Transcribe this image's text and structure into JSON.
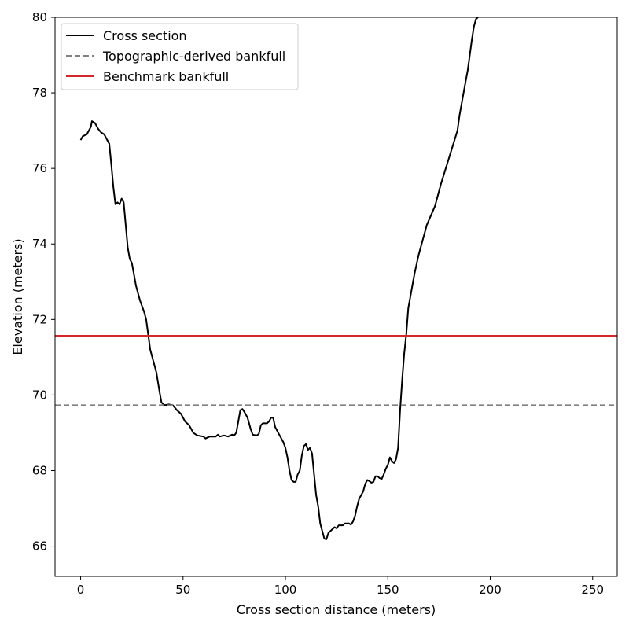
{
  "chart_data": {
    "type": "line",
    "xlabel": "Cross section distance (meters)",
    "ylabel": "Elevation (meters)",
    "xlim": [
      -12.5,
      262
    ],
    "ylim": [
      65.2,
      80
    ],
    "x_ticks": [
      0,
      50,
      100,
      150,
      200,
      250
    ],
    "y_ticks": [
      66,
      68,
      70,
      72,
      74,
      76,
      78,
      80
    ],
    "legend_position": "upper-left",
    "series": [
      {
        "name": "Cross section",
        "style": "solid",
        "color": "#000000",
        "points": [
          [
            0,
            76.75
          ],
          [
            1,
            76.85
          ],
          [
            3,
            76.9
          ],
          [
            5,
            77.1
          ],
          [
            5.5,
            77.25
          ],
          [
            7,
            77.2
          ],
          [
            8.5,
            77.05
          ],
          [
            10,
            76.95
          ],
          [
            11.5,
            76.9
          ],
          [
            13,
            76.75
          ],
          [
            14,
            76.65
          ],
          [
            15,
            76.1
          ],
          [
            16,
            75.5
          ],
          [
            17,
            75.05
          ],
          [
            18,
            75.1
          ],
          [
            19,
            75.05
          ],
          [
            20,
            75.2
          ],
          [
            21,
            75.1
          ],
          [
            22,
            74.5
          ],
          [
            23,
            73.9
          ],
          [
            24,
            73.6
          ],
          [
            25,
            73.5
          ],
          [
            27,
            72.9
          ],
          [
            29,
            72.5
          ],
          [
            31,
            72.2
          ],
          [
            32,
            72.0
          ],
          [
            33,
            71.6
          ],
          [
            34,
            71.2
          ],
          [
            35,
            71.0
          ],
          [
            37,
            70.6
          ],
          [
            38.5,
            70.1
          ],
          [
            39.5,
            69.8
          ],
          [
            41,
            69.73
          ],
          [
            43,
            69.75
          ],
          [
            45,
            69.73
          ],
          [
            47,
            69.6
          ],
          [
            49,
            69.5
          ],
          [
            51,
            69.3
          ],
          [
            53,
            69.2
          ],
          [
            55,
            69.0
          ],
          [
            57,
            68.93
          ],
          [
            60,
            68.9
          ],
          [
            61,
            68.85
          ],
          [
            63,
            68.9
          ],
          [
            66,
            68.9
          ],
          [
            67,
            68.95
          ],
          [
            68,
            68.9
          ],
          [
            70,
            68.93
          ],
          [
            72,
            68.9
          ],
          [
            74,
            68.95
          ],
          [
            75,
            68.93
          ],
          [
            76,
            69.0
          ],
          [
            77,
            69.3
          ],
          [
            78,
            69.6
          ],
          [
            79,
            69.63
          ],
          [
            80,
            69.55
          ],
          [
            81.5,
            69.4
          ],
          [
            83,
            69.1
          ],
          [
            84,
            68.95
          ],
          [
            86,
            68.93
          ],
          [
            87,
            68.97
          ],
          [
            88,
            69.2
          ],
          [
            89,
            69.25
          ],
          [
            91,
            69.25
          ],
          [
            92,
            69.3
          ],
          [
            93,
            69.4
          ],
          [
            94,
            69.4
          ],
          [
            95,
            69.15
          ],
          [
            96,
            69.05
          ],
          [
            97,
            68.95
          ],
          [
            98,
            68.85
          ],
          [
            99,
            68.75
          ],
          [
            100,
            68.6
          ],
          [
            101,
            68.35
          ],
          [
            102,
            68.0
          ],
          [
            103,
            67.75
          ],
          [
            104,
            67.7
          ],
          [
            105,
            67.7
          ],
          [
            106,
            67.9
          ],
          [
            107,
            68.0
          ],
          [
            108,
            68.4
          ],
          [
            109,
            68.65
          ],
          [
            110,
            68.7
          ],
          [
            111,
            68.55
          ],
          [
            112,
            68.6
          ],
          [
            113,
            68.45
          ],
          [
            114,
            67.9
          ],
          [
            115,
            67.35
          ],
          [
            116,
            67.05
          ],
          [
            117,
            66.6
          ],
          [
            118,
            66.4
          ],
          [
            119,
            66.2
          ],
          [
            120,
            66.18
          ],
          [
            121,
            66.35
          ],
          [
            122,
            66.4
          ],
          [
            123,
            66.45
          ],
          [
            124,
            66.5
          ],
          [
            125,
            66.47
          ],
          [
            126,
            66.55
          ],
          [
            128,
            66.55
          ],
          [
            129,
            66.6
          ],
          [
            131,
            66.6
          ],
          [
            132,
            66.57
          ],
          [
            133,
            66.65
          ],
          [
            134,
            66.8
          ],
          [
            135,
            67.05
          ],
          [
            136,
            67.25
          ],
          [
            137,
            67.35
          ],
          [
            138,
            67.45
          ],
          [
            139,
            67.65
          ],
          [
            140,
            67.75
          ],
          [
            141,
            67.72
          ],
          [
            142,
            67.68
          ],
          [
            143,
            67.7
          ],
          [
            144,
            67.85
          ],
          [
            145,
            67.85
          ],
          [
            146,
            67.8
          ],
          [
            147,
            67.78
          ],
          [
            148,
            67.9
          ],
          [
            149,
            68.05
          ],
          [
            150,
            68.15
          ],
          [
            151,
            68.35
          ],
          [
            152,
            68.25
          ],
          [
            153,
            68.2
          ],
          [
            154,
            68.3
          ],
          [
            155,
            68.6
          ],
          [
            156,
            69.6
          ],
          [
            157,
            70.4
          ],
          [
            158,
            71.1
          ],
          [
            159,
            71.6
          ],
          [
            160,
            72.3
          ],
          [
            161,
            72.6
          ],
          [
            162,
            72.9
          ],
          [
            163,
            73.2
          ],
          [
            165,
            73.7
          ],
          [
            167,
            74.1
          ],
          [
            169,
            74.5
          ],
          [
            171,
            74.75
          ],
          [
            173,
            75.0
          ],
          [
            174,
            75.2
          ],
          [
            175,
            75.4
          ],
          [
            176,
            75.6
          ],
          [
            178,
            75.95
          ],
          [
            180,
            76.3
          ],
          [
            182,
            76.65
          ],
          [
            184,
            77.0
          ],
          [
            185,
            77.4
          ],
          [
            186,
            77.7
          ],
          [
            187,
            78.0
          ],
          [
            188,
            78.3
          ],
          [
            189,
            78.6
          ],
          [
            190,
            79.0
          ],
          [
            191,
            79.4
          ],
          [
            192,
            79.75
          ],
          [
            193,
            79.95
          ],
          [
            194,
            80.0
          ]
        ]
      },
      {
        "name": "Topographic-derived bankfull",
        "style": "dashed",
        "color": "#808080",
        "y": 69.73
      },
      {
        "name": "Benchmark bankfull",
        "style": "solid",
        "color": "#d62728",
        "y": 71.57
      }
    ]
  }
}
